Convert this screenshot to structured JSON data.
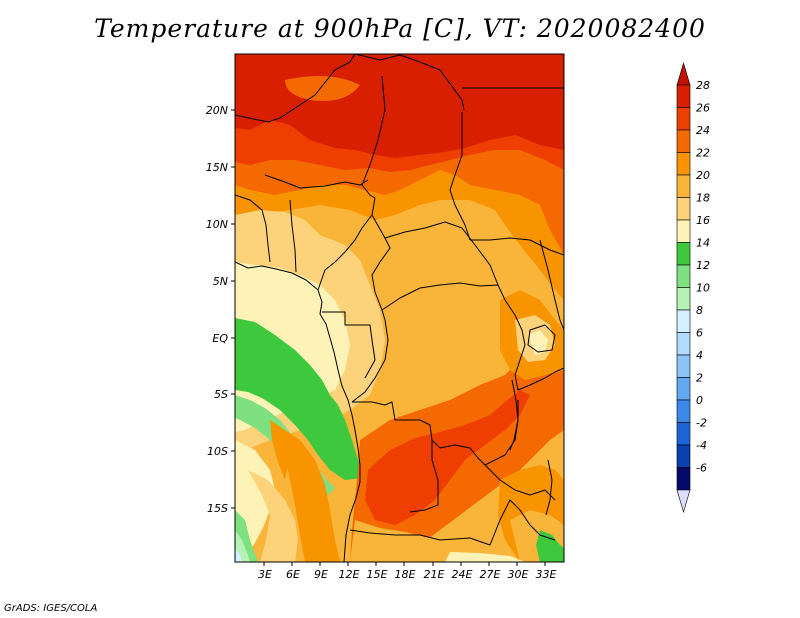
{
  "title": "Temperature at 900hPa [C], VT: 2020082400",
  "credit": "GrADS: IGES/COLA",
  "map": {
    "lat_labels": [
      "20N",
      "15N",
      "10N",
      "5N",
      "EQ",
      "5S",
      "10S",
      "15S"
    ],
    "lon_labels": [
      "3E",
      "6E",
      "9E",
      "12E",
      "15E",
      "18E",
      "21E",
      "24E",
      "27E",
      "30E",
      "33E"
    ]
  },
  "colorbar": {
    "labels": [
      "28",
      "26",
      "24",
      "22",
      "20",
      "18",
      "16",
      "14",
      "12",
      "10",
      "8",
      "6",
      "4",
      "2",
      "0",
      "-2",
      "-4",
      "-6"
    ],
    "colors": [
      "#d82000",
      "#ee3f00",
      "#f56a00",
      "#f89400",
      "#f9b43a",
      "#fcd27a",
      "#fef3b6",
      "#3ec83e",
      "#7ee07e",
      "#b5f2b5",
      "#d4efff",
      "#b1dbff",
      "#8cc4f8",
      "#63a8f1",
      "#3a88e8",
      "#1b66d6",
      "#0c40b0",
      "#050a6a"
    ],
    "top_arrow_color": "#c41000",
    "bottom_arrow_color": "#dcdcff"
  },
  "palette": {
    "t28": "#d82000",
    "t26": "#ee3f00",
    "t24": "#f56a00",
    "t22": "#f89400",
    "t20": "#f9b43a",
    "t18": "#fcd27a",
    "t16": "#fef3b6",
    "t14": "#3ec83e",
    "t12": "#7ee07e",
    "t10": "#b5f2b5",
    "t8": "#d4efff"
  }
}
